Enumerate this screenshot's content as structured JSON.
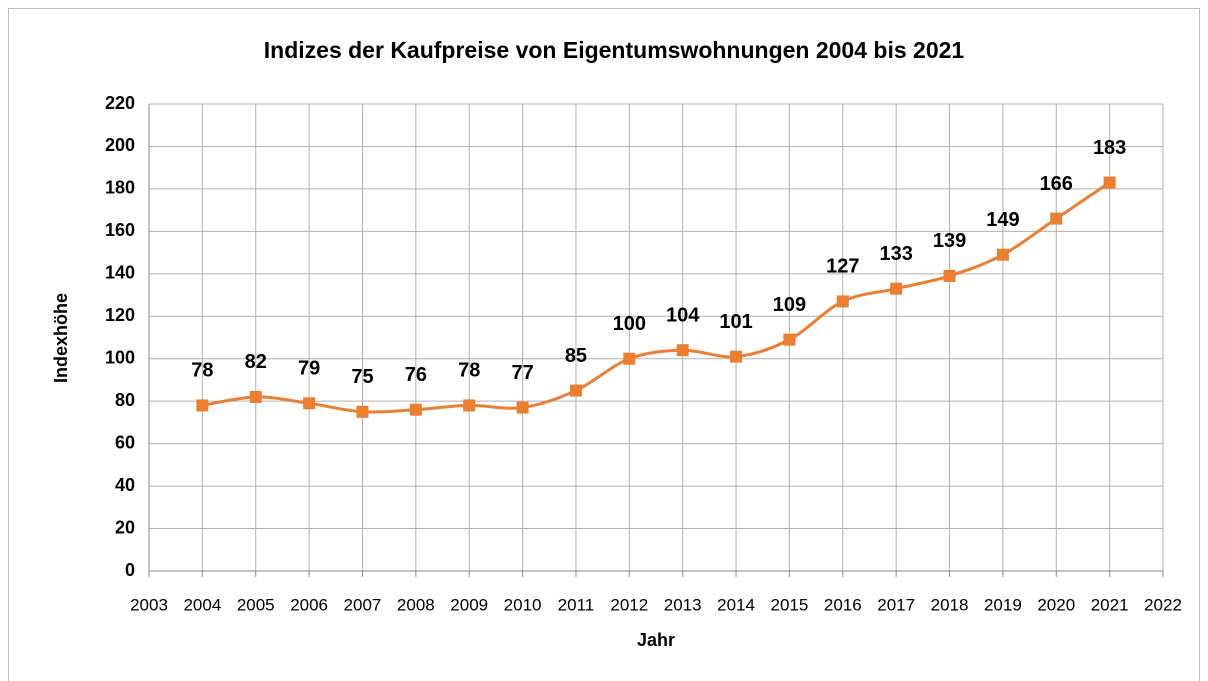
{
  "chart_data": {
    "type": "line",
    "title": "Indizes der Kaufpreise von Eigentumswohnungen 2004 bis 2021",
    "x_label": "Jahr",
    "y_label": "Indexhöhe",
    "x": [
      2004,
      2005,
      2006,
      2007,
      2008,
      2009,
      2010,
      2011,
      2012,
      2013,
      2014,
      2015,
      2016,
      2017,
      2018,
      2019,
      2020,
      2021
    ],
    "values": [
      78,
      82,
      79,
      75,
      76,
      78,
      77,
      85,
      100,
      104,
      101,
      109,
      127,
      133,
      139,
      149,
      166,
      183
    ],
    "color": "#ed7d31",
    "smooth": true,
    "marker": "square",
    "xlim": [
      2003,
      2022
    ],
    "xticks": [
      2003,
      2004,
      2005,
      2006,
      2007,
      2008,
      2009,
      2010,
      2011,
      2012,
      2013,
      2014,
      2015,
      2016,
      2017,
      2018,
      2019,
      2020,
      2021,
      2022
    ],
    "ylim": [
      0,
      220
    ],
    "yticks": [
      0,
      20,
      40,
      60,
      80,
      100,
      120,
      140,
      160,
      180,
      200,
      220
    ],
    "grid": true
  }
}
